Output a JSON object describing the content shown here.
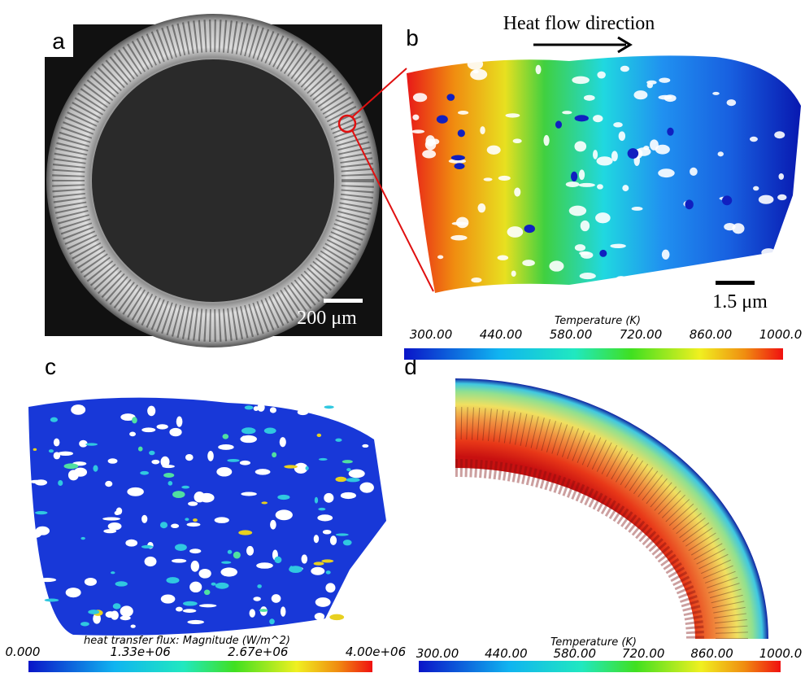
{
  "panels": [
    {
      "label": "a",
      "scale_bar": "200 μm"
    },
    {
      "label": "b",
      "annotation": "Heat flow direction",
      "scale_bar": "1.5 μm",
      "colorbar": {
        "title": "Temperature (K)",
        "ticks": [
          "300.00",
          "440.00",
          "580.00",
          "720.00",
          "860.00",
          "1000.0"
        ]
      }
    },
    {
      "label": "c",
      "colorbar": {
        "title": "heat transfer flux: Magnitude (W/m^2)",
        "ticks": [
          "0.000",
          "1.33e+06",
          "2.67e+06",
          "4.00e+06"
        ]
      }
    },
    {
      "label": "d",
      "colorbar": {
        "title": "Temperature (K)",
        "ticks": [
          "300.00",
          "440.00",
          "580.00",
          "720.00",
          "860.00",
          "1000.0"
        ]
      }
    }
  ]
}
